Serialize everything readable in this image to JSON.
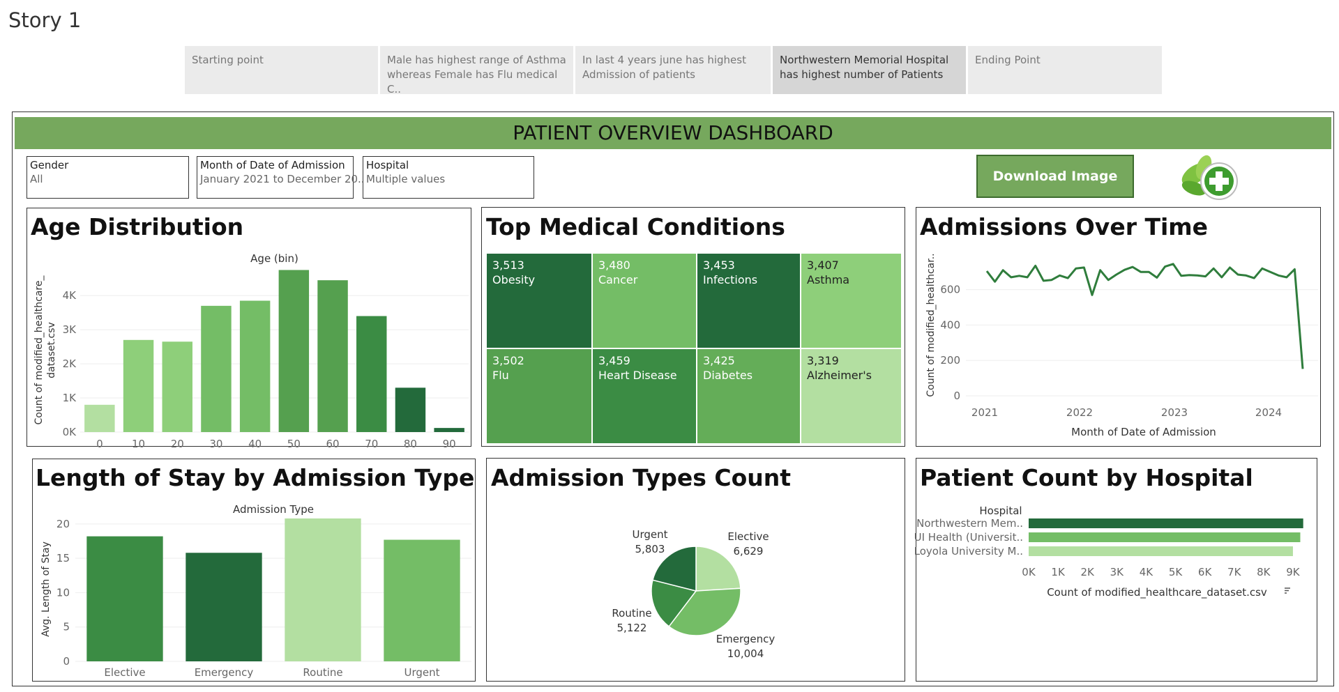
{
  "story": {
    "title": "Story 1",
    "tabs": [
      {
        "label": "Starting point",
        "active": false
      },
      {
        "label": "Male has highest range of Asthma whereas Female has Flu medical  C..",
        "active": false
      },
      {
        "label": " In last 4 years june has highest Admission of patients",
        "active": false
      },
      {
        "label": " Northwestern Memorial Hospital has highest number of Patients",
        "active": true
      },
      {
        "label": "Ending Point",
        "active": false
      }
    ]
  },
  "dashboard": {
    "title": "PATIENT OVERVIEW DASHBOARD",
    "download_label": "Download Image",
    "logo_icon": "leaf-plus-icon"
  },
  "filters": [
    {
      "label": "Gender",
      "value": "All"
    },
    {
      "label": "Month of Date of Admission",
      "value": "January 2021 to December 20.."
    },
    {
      "label": "Hospital",
      "value": "Multiple values"
    }
  ],
  "colors": {
    "shade1": "#b3dfa1",
    "shade2": "#8ecf7a",
    "shade3": "#74bd66",
    "shade4": "#55a04f",
    "shade5": "#3b8c44",
    "shade6": "#236a3b",
    "banner": "#76a85d"
  },
  "chart_data": [
    {
      "id": "age",
      "type": "bar",
      "title": "Age Distribution",
      "header": "Age (bin)",
      "ylabel": "Count of modified_healthcare_\ndataset.csv",
      "categories": [
        "0",
        "10",
        "20",
        "30",
        "40",
        "50",
        "60",
        "70",
        "80",
        "90"
      ],
      "values": [
        800,
        2700,
        2650,
        3700,
        3850,
        4750,
        4450,
        3400,
        1300,
        120
      ],
      "ylim": [
        0,
        4800
      ],
      "yticks": [
        0,
        1000,
        2000,
        3000,
        4000
      ],
      "ytick_labels": [
        "0K",
        "1K",
        "2K",
        "3K",
        "4K"
      ],
      "colors": [
        "#b3dfa1",
        "#8ecf7a",
        "#8ecf7a",
        "#74bd66",
        "#74bd66",
        "#55a04f",
        "#55a04f",
        "#3b8c44",
        "#236a3b",
        "#236a3b"
      ]
    },
    {
      "id": "conditions",
      "type": "heatmap",
      "title": "Top Medical Conditions",
      "cells": [
        {
          "label": "Obesity",
          "value": "3,513",
          "color": "#236a3b"
        },
        {
          "label": "Cancer",
          "value": "3,480",
          "color": "#74bd66"
        },
        {
          "label": "Infections",
          "value": "3,453",
          "color": "#236a3b"
        },
        {
          "label": "Asthma",
          "value": "3,407",
          "color": "#8ecf7a"
        },
        {
          "label": "Flu",
          "value": "3,502",
          "color": "#55a04f"
        },
        {
          "label": "Heart Disease",
          "value": "3,459",
          "color": "#3b8c44"
        },
        {
          "label": "Diabetes",
          "value": "3,425",
          "color": "#64ad58"
        },
        {
          "label": "Alzheimer's",
          "value": "3,319",
          "color": "#b3dfa1"
        }
      ]
    },
    {
      "id": "admissions",
      "type": "line",
      "title": "Admissions Over Time",
      "xlabel": "Month of Date of Admission",
      "ylabel": "Count of modified_healthcar..",
      "xticks": [
        "2021",
        "2022",
        "2023",
        "2024"
      ],
      "yticks": [
        0,
        200,
        400,
        600
      ],
      "ylim": [
        0,
        760
      ],
      "values": [
        705,
        645,
        710,
        670,
        678,
        670,
        735,
        650,
        655,
        680,
        665,
        720,
        725,
        570,
        710,
        655,
        685,
        712,
        728,
        700,
        700,
        668,
        730,
        745,
        678,
        682,
        680,
        675,
        720,
        670,
        725,
        685,
        680,
        665,
        720,
        700,
        680,
        670,
        715,
        152
      ],
      "color": "#2f7d3c"
    },
    {
      "id": "los",
      "type": "bar",
      "title": "Length of Stay by Admission Type",
      "header": "Admission Type",
      "ylabel": "Avg. Length of Stay",
      "categories": [
        "Elective",
        "Emergency",
        "Routine",
        "Urgent"
      ],
      "values": [
        18.2,
        15.8,
        20.8,
        17.7
      ],
      "ylim": [
        0,
        21
      ],
      "yticks": [
        0,
        5,
        10,
        15,
        20
      ],
      "colors": [
        "#3b8c44",
        "#236a3b",
        "#b3dfa1",
        "#74bd66"
      ]
    },
    {
      "id": "admtypes",
      "type": "pie",
      "title": "Admission Types Count",
      "slices": [
        {
          "label": "Elective",
          "value": 6629,
          "value_label": "6,629",
          "color": "#b3dfa1"
        },
        {
          "label": "Emergency",
          "value": 10004,
          "value_label": "10,004",
          "color": "#74bd66"
        },
        {
          "label": "Routine",
          "value": 5122,
          "value_label": "5,122",
          "color": "#3b8c44"
        },
        {
          "label": "Urgent",
          "value": 5803,
          "value_label": "5,803",
          "color": "#236a3b"
        }
      ]
    },
    {
      "id": "hospital",
      "type": "bar",
      "orientation": "horizontal",
      "title": "Patient Count by Hospital",
      "header": "Hospital",
      "xlabel": "Count of modified_healthcare_dataset.csv",
      "sort_icon": "sort-descending-icon",
      "categories": [
        "Northwestern Mem..",
        "UI Health (Universit..",
        "Loyola University M.."
      ],
      "values": [
        9350,
        9250,
        9000
      ],
      "xlim": [
        0,
        9500
      ],
      "xticks": [
        0,
        1000,
        2000,
        3000,
        4000,
        5000,
        6000,
        7000,
        8000,
        9000
      ],
      "xtick_labels": [
        "0K",
        "1K",
        "2K",
        "3K",
        "4K",
        "5K",
        "6K",
        "7K",
        "8K",
        "9K"
      ],
      "colors": [
        "#236a3b",
        "#74bd66",
        "#b3dfa1"
      ]
    }
  ]
}
